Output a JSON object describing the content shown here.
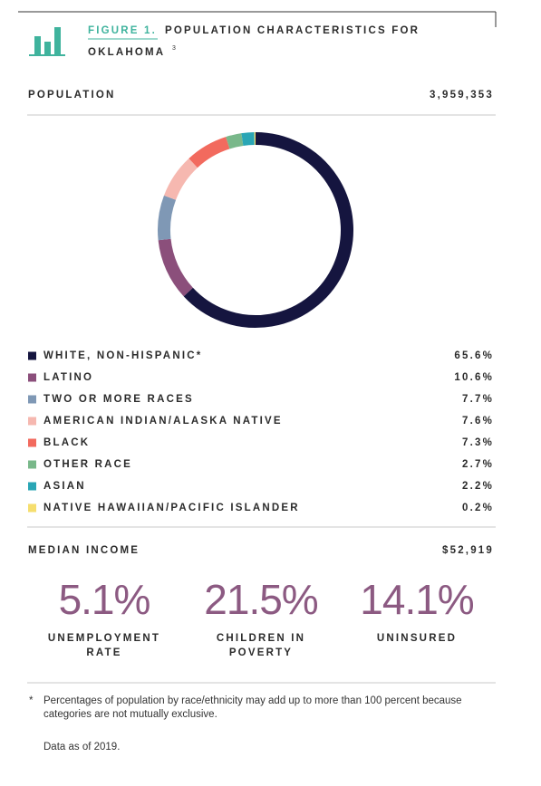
{
  "header": {
    "figure_label": "FIGURE 1.",
    "title_line1": "POPULATION CHARACTERISTICS FOR",
    "title_line2": "OKLAHOMA",
    "footnote_ref": "3"
  },
  "population": {
    "label": "POPULATION",
    "value": "3,959,353"
  },
  "chart_data": {
    "type": "donut",
    "categories": [
      "WHITE, NON-HISPANIC*",
      "LATINO",
      "TWO OR MORE RACES",
      "AMERICAN INDIAN/ALASKA NATIVE",
      "BLACK",
      "OTHER RACE",
      "ASIAN",
      "NATIVE HAWAIIAN/PACIFIC ISLANDER"
    ],
    "values": [
      65.6,
      10.6,
      7.7,
      7.6,
      7.3,
      2.7,
      2.2,
      0.2
    ],
    "value_labels": [
      "65.6%",
      "10.6%",
      "7.7%",
      "7.6%",
      "7.3%",
      "2.7%",
      "2.2%",
      "0.2%"
    ],
    "colors": [
      "#15153f",
      "#8b4f7b",
      "#7f98b5",
      "#f6b8b0",
      "#f26a5e",
      "#79b88a",
      "#2aa6b5",
      "#f6de6e"
    ]
  },
  "median_income": {
    "label": "MEDIAN INCOME",
    "value": "$52,919"
  },
  "stats": [
    {
      "value": "5.1%",
      "label_line1": "UNEMPLOYMENT",
      "label_line2": "RATE"
    },
    {
      "value": "21.5%",
      "label_line1": "CHILDREN IN",
      "label_line2": "POVERTY"
    },
    {
      "value": "14.1%",
      "label_line1": "UNINSURED"
    }
  ],
  "footnote": {
    "marker": "*",
    "line1": "Percentages of population by race/ethnicity may add up to more than 100 percent because",
    "line2": "categories are not mutually exclusive."
  },
  "data_note": "Data as of 2019."
}
